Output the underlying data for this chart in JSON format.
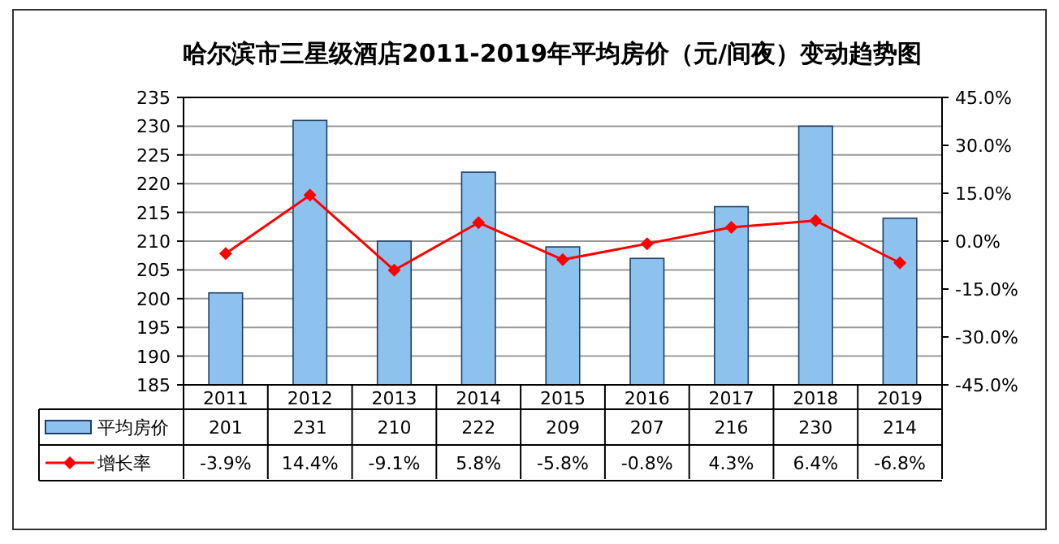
{
  "chart_data": {
    "type": "bar",
    "title": "哈尔滨市三星级酒店2011-2019年平均房价（元/间夜）变动趋势图",
    "categories": [
      "2011",
      "2012",
      "2013",
      "2014",
      "2015",
      "2016",
      "2017",
      "2018",
      "2019"
    ],
    "series": [
      {
        "name": "平均房价",
        "color": "#8ec2ee",
        "values": [
          201,
          231,
          210,
          222,
          209,
          207,
          216,
          230,
          214
        ]
      },
      {
        "name": "增长率",
        "type": "line",
        "axis": "y2",
        "color": "#ff0000",
        "marker": "diamond",
        "values": [
          -3.9,
          14.4,
          -9.1,
          5.8,
          -5.8,
          -0.8,
          4.3,
          6.4,
          -6.8
        ],
        "value_labels": [
          "-3.9%",
          "14.4%",
          "-9.1%",
          "5.8%",
          "-5.8%",
          "-0.8%",
          "4.3%",
          "6.4%",
          "-6.8%"
        ]
      }
    ],
    "ylim": [
      185,
      235
    ],
    "yticks": [
      185,
      190,
      195,
      200,
      205,
      210,
      215,
      220,
      225,
      230,
      235
    ],
    "y2lim": [
      -45,
      45
    ],
    "y2ticks": [
      {
        "value": -45,
        "label": "-45.0%"
      },
      {
        "value": -30,
        "label": "-30.0%"
      },
      {
        "value": -15,
        "label": "-15.0%"
      },
      {
        "value": 0,
        "label": "0.0%"
      },
      {
        "value": 15,
        "label": "15.0%"
      },
      {
        "value": 30,
        "label": "30.0%"
      },
      {
        "value": 45,
        "label": "45.0%"
      }
    ],
    "grid": "y",
    "legend": "bottom",
    "data_labels": true
  }
}
